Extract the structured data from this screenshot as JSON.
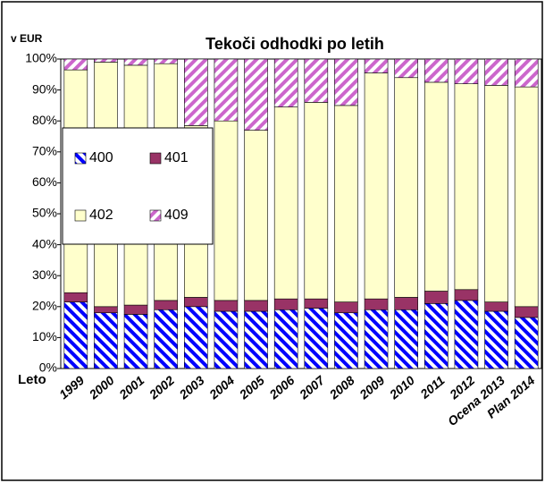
{
  "chart_data": {
    "type": "stacked_bar",
    "title": "Tekoči odhodki po letih",
    "unit_label": "v EUR",
    "x_label": "Leto",
    "categories": [
      "1999",
      "2000",
      "2001",
      "2002",
      "2003",
      "2004",
      "2005",
      "2006",
      "2007",
      "2008",
      "2009",
      "2010",
      "2011",
      "2012",
      "Ocena 2013",
      "Plan 2014"
    ],
    "series": [
      {
        "name": "400",
        "color": "#0000ff",
        "pattern": "hatch-down",
        "values": [
          21.5,
          18,
          17.5,
          19,
          20,
          18.5,
          18.5,
          19,
          19.5,
          18,
          19,
          19,
          21,
          22,
          18.5,
          16.5
        ]
      },
      {
        "name": "401",
        "color": "#993366",
        "pattern": "solid",
        "values": [
          3,
          2,
          3,
          3,
          3,
          3.5,
          3.5,
          3.5,
          3,
          3.5,
          3.5,
          4,
          4,
          3.5,
          3,
          3.5
        ]
      },
      {
        "name": "402",
        "color": "#ffffcc",
        "pattern": "solid",
        "values": [
          72,
          79,
          77.5,
          76.5,
          55.5,
          58,
          55,
          62,
          63.5,
          63.5,
          73,
          71,
          67.5,
          66.5,
          70,
          71
        ]
      },
      {
        "name": "409",
        "color": "#cc66cc",
        "pattern": "hatch-up",
        "values": [
          3.5,
          1,
          2,
          1.5,
          21.5,
          20,
          23,
          15.5,
          14,
          15,
          4.5,
          6,
          7.5,
          8,
          8.5,
          9
        ]
      }
    ],
    "ylim": [
      0,
      100
    ],
    "yticks": [
      {
        "value": 0,
        "label": "0%"
      },
      {
        "value": 10,
        "label": "10%"
      },
      {
        "value": 20,
        "label": "20%"
      },
      {
        "value": 30,
        "label": "30%"
      },
      {
        "value": 40,
        "label": "40%"
      },
      {
        "value": 50,
        "label": "50%"
      },
      {
        "value": 60,
        "label": "60%"
      },
      {
        "value": 70,
        "label": "70%"
      },
      {
        "value": 80,
        "label": "80%"
      },
      {
        "value": 90,
        "label": "90%"
      },
      {
        "value": 100,
        "label": "100%"
      }
    ],
    "grid": false,
    "legend": "left"
  }
}
